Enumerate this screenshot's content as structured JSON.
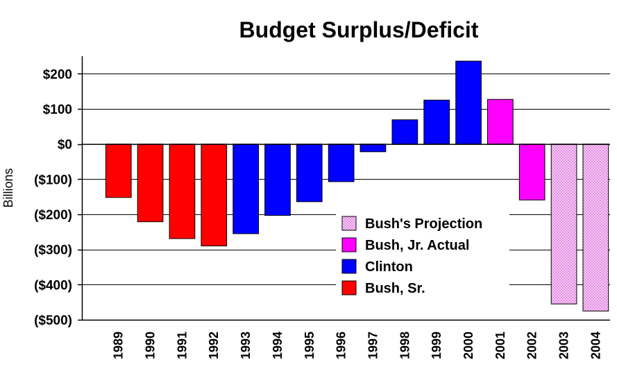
{
  "chart_data": {
    "type": "bar",
    "title": "Budget Surplus/Deficit",
    "ylabel": "Billions",
    "xlabel": "",
    "ylim": [
      -500,
      250
    ],
    "yticks": [
      {
        "value": 200,
        "label": "$200"
      },
      {
        "value": 100,
        "label": "$100"
      },
      {
        "value": 0,
        "label": "$0"
      },
      {
        "value": -100,
        "label": "($100)"
      },
      {
        "value": -200,
        "label": "($200)"
      },
      {
        "value": -300,
        "label": "($300)"
      },
      {
        "value": -400,
        "label": "($400)"
      },
      {
        "value": -500,
        "label": "($500)"
      }
    ],
    "grid": true,
    "legend_position": "center-bottom",
    "categories": [
      "1989",
      "1990",
      "1991",
      "1992",
      "1993",
      "1994",
      "1995",
      "1996",
      "1997",
      "1998",
      "1999",
      "2000",
      "2001",
      "2002",
      "2003",
      "2004"
    ],
    "values": [
      -152,
      -221,
      -269,
      -290,
      -255,
      -203,
      -164,
      -107,
      -22,
      69,
      125,
      236,
      127,
      -159,
      -455,
      -475
    ],
    "groups": [
      "Bush, Sr.",
      "Bush, Sr.",
      "Bush, Sr.",
      "Bush, Sr.",
      "Clinton",
      "Clinton",
      "Clinton",
      "Clinton",
      "Clinton",
      "Clinton",
      "Clinton",
      "Clinton",
      "Bush, Jr. Actual",
      "Bush, Jr. Actual",
      "Bush's Projection",
      "Bush's Projection"
    ],
    "legend": [
      {
        "name": "Bush's Projection",
        "color": "#ffb3ff",
        "pattern": "dots"
      },
      {
        "name": "Bush, Jr. Actual",
        "color": "#ff00ff",
        "pattern": "solid"
      },
      {
        "name": "Clinton",
        "color": "#0000ff",
        "pattern": "solid"
      },
      {
        "name": "Bush, Sr.",
        "color": "#ff0000",
        "pattern": "solid"
      }
    ]
  }
}
